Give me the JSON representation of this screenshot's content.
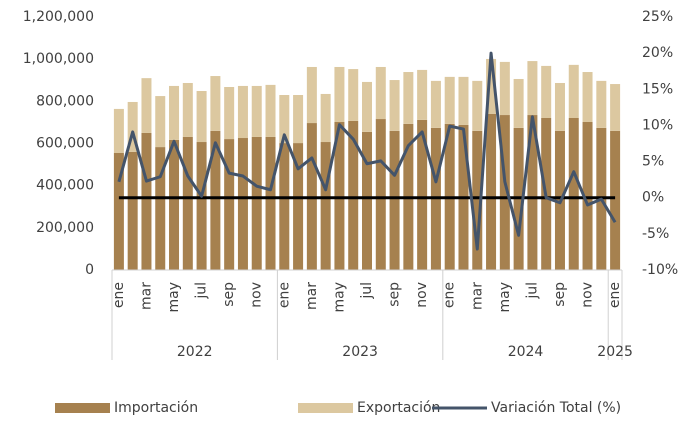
{
  "chart_data": {
    "type": "bar",
    "stacked": true,
    "categories": [
      "ene",
      null,
      "mar",
      null,
      "may",
      null,
      "jul",
      null,
      "sep",
      null,
      "nov",
      null,
      "ene",
      null,
      "mar",
      null,
      "may",
      null,
      "jul",
      null,
      "sep",
      null,
      "nov",
      null,
      "ene",
      null,
      "mar",
      null,
      "may",
      null,
      "jul",
      null,
      "sep",
      null,
      "nov",
      null,
      "ene"
    ],
    "groups": [
      {
        "label": "2022",
        "count": 12
      },
      {
        "label": "2023",
        "count": 12
      },
      {
        "label": "2024",
        "count": 12
      },
      {
        "label": "2025",
        "count": 1
      }
    ],
    "series": [
      {
        "name": "Importación",
        "color": "#a6814f",
        "type": "bar",
        "values": [
          555000,
          560000,
          650000,
          583000,
          617000,
          631000,
          607000,
          660000,
          621000,
          626000,
          631000,
          631000,
          602000,
          602000,
          697000,
          607000,
          702000,
          707000,
          655000,
          716000,
          660000,
          693000,
          712000,
          674000,
          693000,
          688000,
          660000,
          740000,
          735000,
          674000,
          735000,
          721000,
          660000,
          721000,
          702000,
          674000,
          660000
        ]
      },
      {
        "name": "Exportación",
        "color": "#dcc8a0",
        "type": "bar",
        "values": [
          209000,
          237000,
          260000,
          242000,
          256000,
          256000,
          242000,
          260000,
          247000,
          247000,
          242000,
          247000,
          228000,
          228000,
          266000,
          228000,
          261000,
          246000,
          237000,
          247000,
          241000,
          246000,
          237000,
          223000,
          223000,
          228000,
          237000,
          261000,
          252000,
          232000,
          256000,
          247000,
          227000,
          252000,
          237000,
          223000,
          222000
        ]
      },
      {
        "name": "Variación Total (%)",
        "color": "#44546a",
        "type": "line",
        "axis": "y2",
        "values": [
          2.2,
          9.1,
          2.3,
          2.9,
          7.8,
          3.0,
          0.2,
          7.6,
          3.4,
          3.0,
          1.6,
          1.1,
          8.7,
          4.0,
          5.5,
          1.1,
          10.1,
          8.1,
          4.7,
          5.1,
          3.1,
          7.2,
          9.1,
          2.2,
          9.9,
          9.5,
          -7.1,
          20.0,
          2.2,
          -5.2,
          11.2,
          0.0,
          -0.7,
          3.6,
          -1.0,
          -0.2,
          -3.4
        ]
      }
    ],
    "y2_reference_line": {
      "value": 0,
      "color": "#000000"
    },
    "ylim": [
      0,
      1200000
    ],
    "yticks": [
      0,
      {
        "value": 200000,
        "label": "200,000"
      },
      {
        "value": 400000,
        "label": "400,000"
      },
      {
        "value": 600000,
        "label": "600,000"
      },
      {
        "value": 800000,
        "label": "800,000"
      },
      {
        "value": 1000000,
        "label": "1,000,000"
      },
      {
        "value": 1200000,
        "label": "1,200,000"
      }
    ],
    "y2lim": [
      -10,
      25
    ],
    "y2ticks": [
      {
        "value": -10,
        "label": "-10%"
      },
      {
        "value": -5,
        "label": "-5%"
      },
      {
        "value": 0,
        "label": "0%"
      },
      {
        "value": 5,
        "label": "5%"
      },
      {
        "value": 10,
        "label": "10%"
      },
      {
        "value": 15,
        "label": "15%"
      },
      {
        "value": 20,
        "label": "20%"
      },
      {
        "value": 25,
        "label": "25%"
      }
    ],
    "legend": "bottom"
  }
}
